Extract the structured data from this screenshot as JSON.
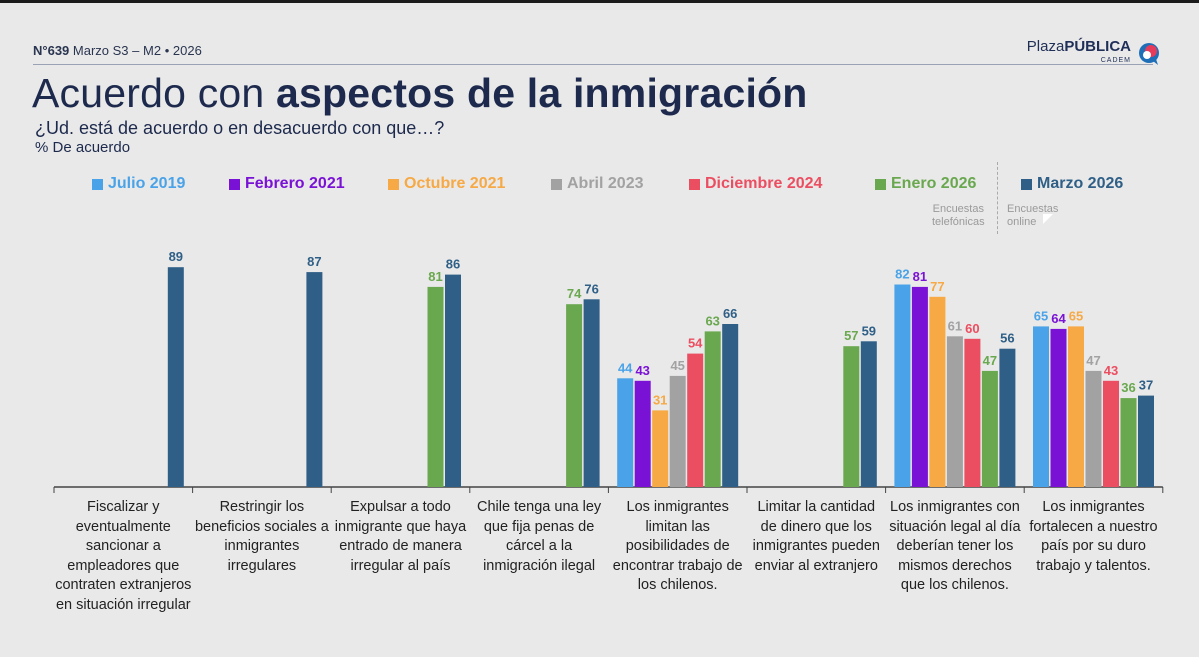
{
  "header": {
    "number": "N°639",
    "edition": "Marzo S3 – M2",
    "separator": "•",
    "year": "2026",
    "logo_light": "Plaza",
    "logo_bold": "PÚBLICA",
    "logo_sub": "CADEM"
  },
  "title_light": "Acuerdo con ",
  "title_bold": "aspectos de la inmigración",
  "subtitle": "¿Ud. está de acuerdo o en desacuerdo con que…?",
  "unit_label": "% De acuerdo",
  "notes": {
    "left_line1": "Encuestas",
    "left_line2": "telefónicas",
    "right_line1": "Encuestas",
    "right_line2": "online"
  },
  "colors": {
    "title": "#1d2a4d",
    "axis": "#444444"
  },
  "chart_data": {
    "type": "bar",
    "title": "Acuerdo con aspectos de la inmigración",
    "ylabel": "% De acuerdo",
    "ylim": [
      0,
      100
    ],
    "grid": false,
    "legend_position": "top",
    "categories": [
      "Fiscalizar y eventualmente sancionar a empleadores que contraten extranjeros en situación irregular",
      "Restringir los beneficios sociales a inmigrantes irregulares",
      "Expulsar a todo inmigrante que haya entrado de manera irregular al país",
      "Chile tenga una ley que fija penas de cárcel a la inmigración ilegal",
      "Los inmigrantes limitan las posibilidades de encontrar trabajo de los chilenos.",
      "Limitar la cantidad de dinero que los inmigrantes pueden enviar al extranjero",
      "Los inmigrantes con situación legal al día deberían tener los mismos derechos que los chilenos.",
      "Los inmigrantes fortalecen a nuestro país por su duro trabajo y talentos."
    ],
    "category_lines": [
      [
        "Fiscalizar y",
        "eventualmente",
        "sancionar a",
        "empleadores que",
        "contraten extranjeros",
        "en situación irregular"
      ],
      [
        "Restringir los",
        "beneficios sociales a",
        "inmigrantes",
        "irregulares"
      ],
      [
        "Expulsar a todo",
        "inmigrante que haya",
        "entrado de manera",
        "irregular al país"
      ],
      [
        "Chile tenga una ley",
        "que fija penas de",
        "cárcel a la",
        "inmigración ilegal"
      ],
      [
        "Los inmigrantes",
        "limitan las",
        "posibilidades de",
        "encontrar trabajo de",
        "los chilenos."
      ],
      [
        "Limitar la cantidad",
        "de dinero que los",
        "inmigrantes pueden",
        "enviar al extranjero"
      ],
      [
        "Los inmigrantes con",
        "situación legal al día",
        "deberían tener los",
        "mismos derechos",
        "que los chilenos."
      ],
      [
        "Los inmigrantes",
        "fortalecen a nuestro",
        "país por su duro",
        "trabajo y talentos."
      ]
    ],
    "series": [
      {
        "name": "Julio 2019",
        "color": "#4aa3e8",
        "values": [
          null,
          null,
          null,
          null,
          44,
          null,
          82,
          65
        ]
      },
      {
        "name": "Febrero 2021",
        "color": "#7a12d6",
        "values": [
          null,
          null,
          null,
          null,
          43,
          null,
          81,
          64
        ]
      },
      {
        "name": "Octubre 2021",
        "color": "#f6a944",
        "values": [
          null,
          null,
          null,
          null,
          31,
          null,
          77,
          65
        ]
      },
      {
        "name": "Abril 2023",
        "color": "#a2a2a2",
        "values": [
          null,
          null,
          null,
          null,
          45,
          null,
          61,
          47
        ]
      },
      {
        "name": "Diciembre 2024",
        "color": "#ec4e61",
        "values": [
          null,
          null,
          null,
          null,
          54,
          null,
          60,
          43
        ]
      },
      {
        "name": "Enero 2026",
        "color": "#6aa84f",
        "values": [
          null,
          null,
          81,
          74,
          63,
          57,
          47,
          36
        ]
      },
      {
        "name": "Marzo 2026",
        "color": "#2f5f86",
        "values": [
          89,
          87,
          86,
          76,
          66,
          59,
          56,
          37
        ]
      }
    ]
  }
}
